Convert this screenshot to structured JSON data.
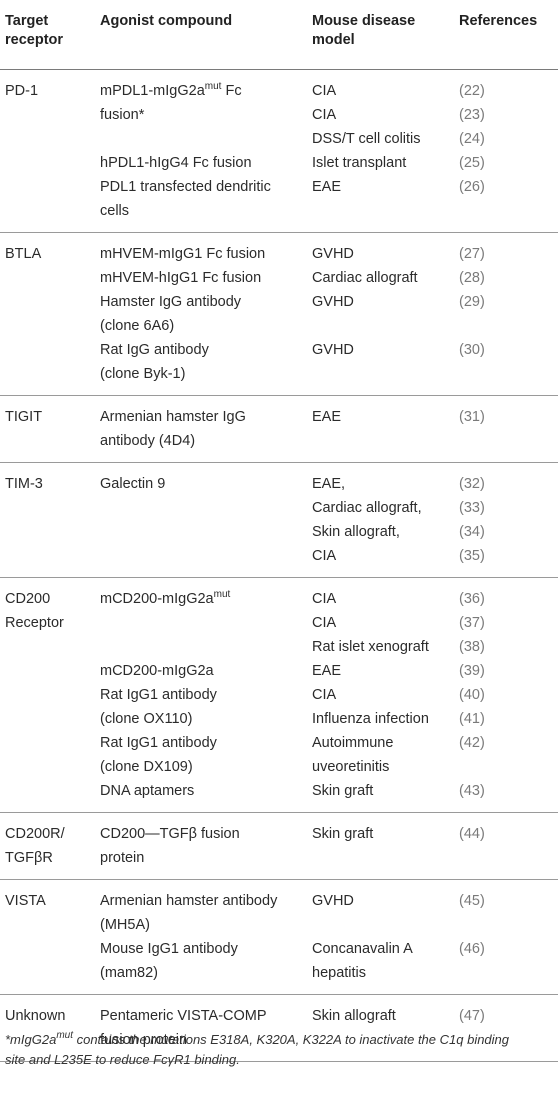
{
  "headers": {
    "target_line1": "Target",
    "target_line2": "receptor",
    "agonist": "Agonist compound",
    "model_line1": "Mouse disease",
    "model_line2": "model",
    "refs": "References"
  },
  "groups": [
    {
      "receptor": [
        "PD-1"
      ],
      "agonists": [
        {
          "lines": [
            [
              "mPDL1-mIgG2a",
              "mut",
              " Fc"
            ],
            [
              "fusion*"
            ]
          ],
          "models": [
            "CIA",
            "CIA",
            "DSS/T cell colitis"
          ],
          "refs": [
            "(22)",
            "(23)",
            "(24)"
          ]
        },
        {
          "lines": [
            [
              "hPDL1-hIgG4 Fc fusion"
            ]
          ],
          "models": [
            "Islet transplant"
          ],
          "refs": [
            "(25)"
          ]
        },
        {
          "lines": [
            [
              "PDL1 transfected dendritic"
            ],
            [
              "cells"
            ]
          ],
          "models": [
            "EAE"
          ],
          "refs": [
            "(26)"
          ]
        }
      ]
    },
    {
      "receptor": [
        "BTLA"
      ],
      "agonists": [
        {
          "lines": [
            [
              "mHVEM-mIgG1 Fc fusion"
            ]
          ],
          "models": [
            "GVHD"
          ],
          "refs": [
            "(27)"
          ]
        },
        {
          "lines": [
            [
              "mHVEM-hIgG1 Fc fusion"
            ]
          ],
          "models": [
            "Cardiac allograft"
          ],
          "refs": [
            "(28)"
          ]
        },
        {
          "lines": [
            [
              "Hamster IgG antibody"
            ],
            [
              "(clone 6A6)"
            ]
          ],
          "models": [
            "GVHD"
          ],
          "refs": [
            "(29)"
          ]
        },
        {
          "lines": [
            [
              "Rat IgG antibody"
            ],
            [
              "(clone Byk-1)"
            ]
          ],
          "models": [
            "GVHD"
          ],
          "refs": [
            "(30)"
          ]
        }
      ]
    },
    {
      "receptor": [
        "TIGIT"
      ],
      "agonists": [
        {
          "lines": [
            [
              "Armenian hamster IgG"
            ],
            [
              "antibody (4D4)"
            ]
          ],
          "models": [
            "EAE"
          ],
          "refs": [
            "(31)"
          ]
        }
      ]
    },
    {
      "receptor": [
        "TIM-3"
      ],
      "agonists": [
        {
          "lines": [
            [
              "Galectin 9"
            ]
          ],
          "models": [
            "EAE,",
            "Cardiac allograft,",
            "Skin allograft,",
            "CIA"
          ],
          "refs": [
            "(32)",
            "(33)",
            "(34)",
            "(35)"
          ]
        }
      ]
    },
    {
      "receptor": [
        "CD200",
        "Receptor"
      ],
      "agonists": [
        {
          "lines": [
            [
              "mCD200-mIgG2a",
              "mut",
              ""
            ]
          ],
          "models": [
            "CIA",
            "CIA",
            "Rat islet xenograft"
          ],
          "refs": [
            "(36)",
            "(37)",
            "(38)"
          ]
        },
        {
          "lines": [
            [
              "mCD200-mIgG2a"
            ]
          ],
          "models": [
            "EAE"
          ],
          "refs": [
            "(39)"
          ]
        },
        {
          "lines": [
            [
              "Rat IgG1 antibody"
            ],
            [
              "(clone OX110)"
            ]
          ],
          "models": [
            "CIA",
            "Influenza infection"
          ],
          "refs": [
            "(40)",
            "(41)"
          ]
        },
        {
          "lines": [
            [
              "Rat IgG1 antibody"
            ],
            [
              "(clone DX109)"
            ]
          ],
          "models": [
            "Autoimmune",
            "uveoretinitis"
          ],
          "refs": [
            "(42)"
          ]
        },
        {
          "lines": [
            [
              "DNA aptamers"
            ]
          ],
          "models": [
            "Skin graft"
          ],
          "refs": [
            "(43)"
          ]
        }
      ]
    },
    {
      "receptor": [
        "CD200R/",
        "TGFβR"
      ],
      "agonists": [
        {
          "lines": [
            [
              "CD200—TGFβ fusion"
            ],
            [
              "protein"
            ]
          ],
          "models": [
            "Skin graft"
          ],
          "refs": [
            "(44)"
          ]
        }
      ]
    },
    {
      "receptor": [
        "VISTA"
      ],
      "agonists": [
        {
          "lines": [
            [
              "Armenian hamster antibody"
            ],
            [
              "(MH5A)"
            ]
          ],
          "models": [
            "GVHD"
          ],
          "refs": [
            "(45)"
          ]
        },
        {
          "lines": [
            [
              "Mouse IgG1 antibody"
            ],
            [
              "(mam82)"
            ]
          ],
          "models": [
            "Concanavalin A",
            "hepatitis"
          ],
          "refs": [
            "(46)"
          ]
        }
      ]
    },
    {
      "receptor": [
        "Unknown"
      ],
      "agonists": [
        {
          "lines": [
            [
              "Pentameric VISTA-COMP"
            ],
            [
              "fusion protein"
            ]
          ],
          "models": [
            "Skin allograft"
          ],
          "refs": [
            "(47)"
          ]
        }
      ]
    }
  ],
  "footnote": {
    "line1_a": "*mIgG2a",
    "line1_sup": "mut",
    "line1_b": " contains the mutations E318A, K320A, K322A to inactivate the C1q binding",
    "line2": "site and L235E to reduce FcγR1 binding."
  }
}
